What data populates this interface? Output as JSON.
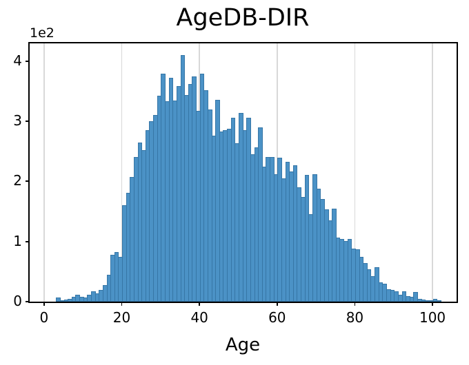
{
  "figure": {
    "title": "AgeDB-DIR",
    "x_axis_label": "Age",
    "y_offset_label": "1e2"
  },
  "chart_data": {
    "type": "bar",
    "subtype": "histogram",
    "title": "AgeDB-DIR",
    "xlabel": "Age",
    "ylabel": "",
    "y_offset_text": "1e2",
    "y_units_note": "y tick values are in units of 1e2 (counts = tick * 100)",
    "bin_width": 1,
    "xlim": [
      -3.8,
      106.2
    ],
    "ylim": [
      0,
      430
    ],
    "xticks": [
      0,
      20,
      40,
      60,
      80,
      100
    ],
    "ytick_values": [
      0,
      100,
      200,
      300,
      400
    ],
    "ytick_labels": [
      "0",
      "1",
      "2",
      "3",
      "4"
    ],
    "grid": "vertical gridlines at x ticks, behind bars",
    "legend": "none",
    "bar_color": "#4b92c6",
    "bar_edge_color": "#3676a6",
    "grid_color": "#d8d8d8",
    "spine_color": "#000000",
    "ages": [
      3,
      4,
      5,
      6,
      7,
      8,
      9,
      10,
      11,
      12,
      13,
      14,
      15,
      16,
      17,
      18,
      19,
      20,
      21,
      22,
      23,
      24,
      25,
      26,
      27,
      28,
      29,
      30,
      31,
      32,
      33,
      34,
      35,
      36,
      37,
      38,
      39,
      40,
      41,
      42,
      43,
      44,
      45,
      46,
      47,
      48,
      49,
      50,
      51,
      52,
      53,
      54,
      55,
      56,
      57,
      58,
      59,
      60,
      61,
      62,
      63,
      64,
      65,
      66,
      67,
      68,
      69,
      70,
      71,
      72,
      73,
      74,
      75,
      76,
      77,
      78,
      79,
      80,
      81,
      82,
      83,
      84,
      85,
      86,
      87,
      88,
      89,
      90,
      91,
      92,
      93,
      94,
      95,
      96,
      97,
      98,
      99,
      100,
      101
    ],
    "counts": [
      7,
      2,
      4,
      5,
      8,
      11,
      8,
      7,
      11,
      17,
      14,
      19,
      28,
      45,
      78,
      83,
      75,
      160,
      181,
      207,
      240,
      265,
      252,
      285,
      300,
      310,
      342,
      379,
      333,
      372,
      334,
      358,
      410,
      344,
      362,
      375,
      317,
      379,
      351,
      319,
      276,
      336,
      283,
      285,
      287,
      306,
      263,
      314,
      285,
      306,
      245,
      256,
      290,
      224,
      241,
      240,
      212,
      239,
      205,
      233,
      216,
      227,
      190,
      174,
      211,
      146,
      212,
      188,
      171,
      154,
      135,
      155,
      107,
      104,
      101,
      104,
      88,
      87,
      74,
      64,
      54,
      42,
      57,
      32,
      30,
      21,
      19,
      17,
      12,
      17,
      9,
      8,
      16,
      5,
      3,
      2,
      2,
      5,
      2
    ]
  }
}
